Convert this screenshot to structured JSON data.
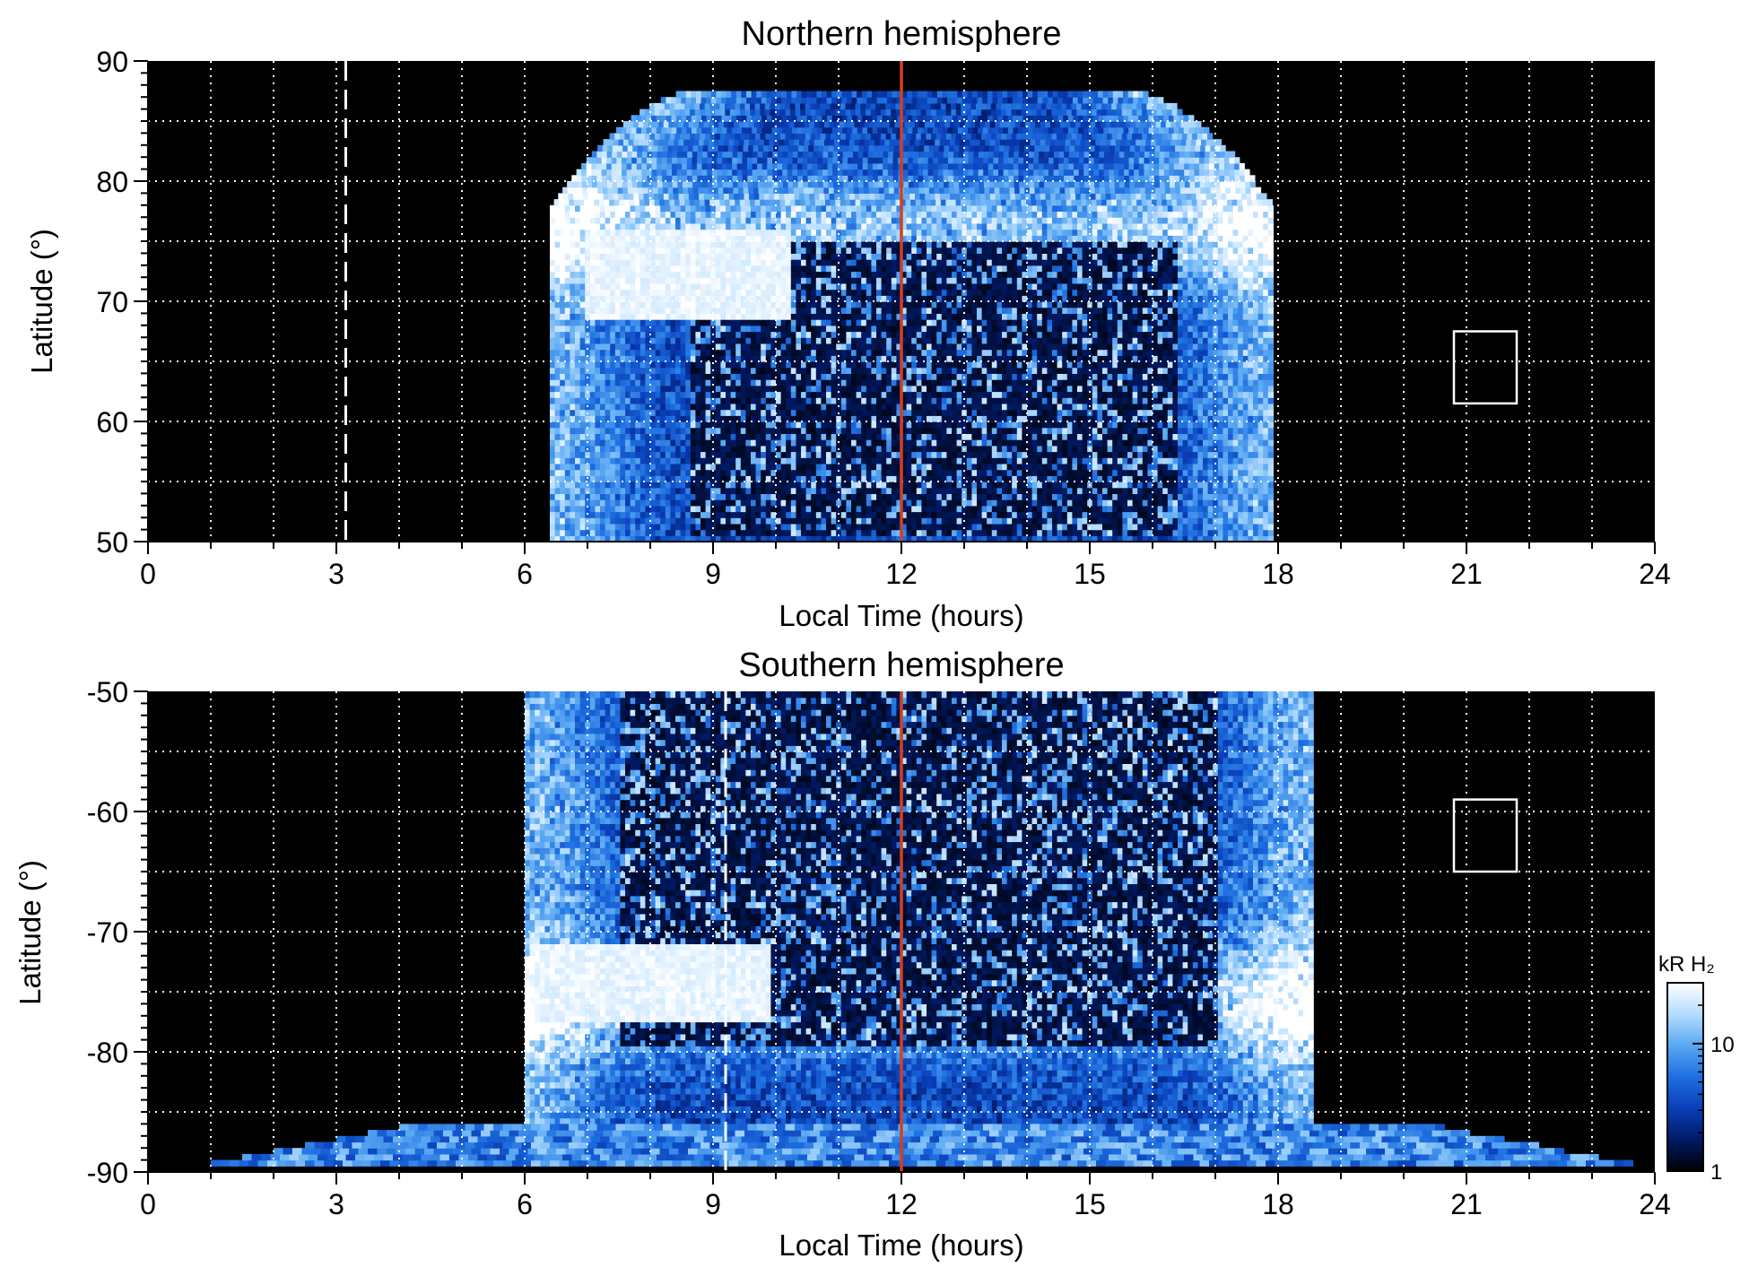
{
  "chart_data": [
    {
      "type": "heatmap",
      "title": "Northern hemisphere",
      "xlabel": "Local Time (hours)",
      "ylabel": "Latitude (°)",
      "xlim": [
        0,
        24
      ],
      "ylim": [
        50,
        90
      ],
      "xticks": [
        0,
        3,
        6,
        9,
        12,
        15,
        18,
        21,
        24
      ],
      "xtick_labels": [
        "0",
        "3",
        "6",
        "9",
        "12",
        "15",
        "18",
        "21",
        "24"
      ],
      "yticks": [
        50,
        60,
        70,
        80,
        90
      ],
      "ytick_labels": [
        "50",
        "60",
        "70",
        "80",
        "90"
      ],
      "grid": true,
      "grid_x_step_hours": 1,
      "grid_y_step_deg": 5,
      "background_color": "#000000",
      "noon_line": {
        "x": 12,
        "color": "#d2401e"
      },
      "dashed_marker": {
        "x": 3.15,
        "color": "#ffffff"
      },
      "empty_box": {
        "x": [
          20.8,
          21.8
        ],
        "y": [
          61.5,
          67.5
        ],
        "color": "#ffffff"
      },
      "coverage": {
        "lt_start": 6.4,
        "lt_end": 17.9,
        "lat_min": 50,
        "lat_max": 87.5
      },
      "features": [
        {
          "kind": "bright-region",
          "lt": [
            6.9,
            10.2
          ],
          "lat": [
            68,
            76
          ]
        },
        {
          "kind": "main-oval",
          "lat_peak": 76,
          "lt": [
            6.5,
            17.8
          ]
        },
        {
          "kind": "dark-polar-region",
          "lt": [
            8.6,
            16.4
          ],
          "lat": [
            50,
            75
          ]
        }
      ]
    },
    {
      "type": "heatmap",
      "title": "Southern hemisphere",
      "xlabel": "Local Time (hours)",
      "ylabel": "Latitude (°)",
      "xlim": [
        0,
        24
      ],
      "ylim": [
        -90,
        -50
      ],
      "xticks": [
        0,
        3,
        6,
        9,
        12,
        15,
        18,
        21,
        24
      ],
      "xtick_labels": [
        "0",
        "3",
        "6",
        "9",
        "12",
        "15",
        "18",
        "21",
        "24"
      ],
      "yticks": [
        -90,
        -80,
        -70,
        -60,
        -50
      ],
      "ytick_labels": [
        "-90",
        "-80",
        "-70",
        "-60",
        "-50"
      ],
      "grid": true,
      "grid_x_step_hours": 1,
      "grid_y_step_deg": 5,
      "background_color": "#000000",
      "noon_line": {
        "x": 12,
        "color": "#d2401e"
      },
      "dashed_marker": {
        "x": 9.2,
        "color": "#ffffff"
      },
      "empty_box": {
        "x": [
          20.8,
          21.8
        ],
        "y": [
          -65,
          -59
        ],
        "color": "#ffffff"
      },
      "coverage": {
        "lt_start": 6.0,
        "lt_end": 18.5,
        "lat_min": -89,
        "lat_max": -50
      },
      "features": [
        {
          "kind": "bright-region",
          "lt": [
            6.1,
            9.9
          ],
          "lat": [
            -78,
            -71
          ]
        },
        {
          "kind": "main-oval",
          "lat_peak": -76,
          "lt": [
            6.0,
            18.5
          ]
        },
        {
          "kind": "dark-polar-region",
          "lt": [
            7.5,
            17.0
          ],
          "lat": [
            -80,
            -50
          ]
        },
        {
          "kind": "pole-edge-streak",
          "lt": [
            1.0,
            23.5
          ],
          "lat": [
            -89.5,
            -86
          ]
        }
      ],
      "colorbar": {
        "label": "kR H₂",
        "ticks": [
          1,
          10
        ],
        "tick_labels": [
          "1",
          "10"
        ],
        "range": [
          1,
          30
        ],
        "scale": "log",
        "colormap": [
          "#000000",
          "#001a66",
          "#0a3fb8",
          "#1e6fe0",
          "#5aa8f2",
          "#b4dcff",
          "#ffffff"
        ]
      }
    }
  ]
}
